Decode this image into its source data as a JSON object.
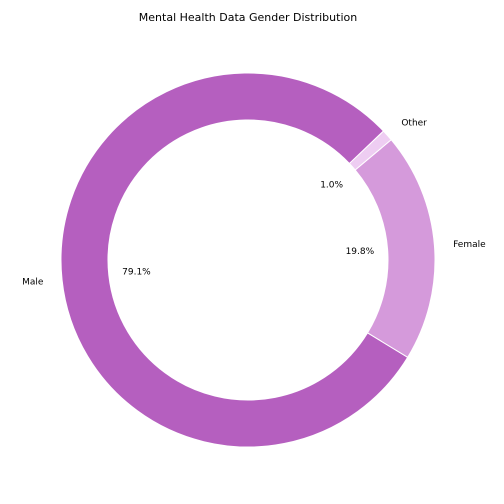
{
  "chart_data": {
    "type": "pie",
    "title": "Mental Health Data Gender Distribution",
    "donut": true,
    "start_angle_deg": 40,
    "direction": "counterclockwise",
    "slices": [
      {
        "label": "Other",
        "value": 1.0,
        "pct_label": "1.0%",
        "color": "#EECDF2"
      },
      {
        "label": "Male",
        "value": 79.1,
        "pct_label": "79.1%",
        "color": "#B55FBF"
      },
      {
        "label": "Female",
        "value": 19.8,
        "pct_label": "19.8%",
        "color": "#D59ADB"
      }
    ]
  }
}
